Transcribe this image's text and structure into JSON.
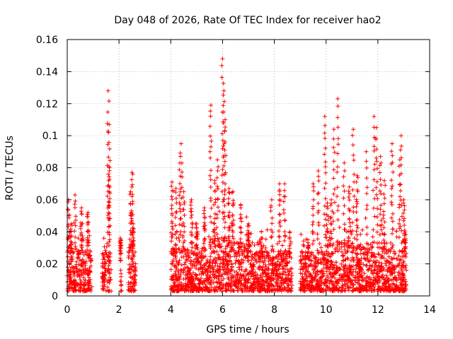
{
  "chart_data": {
    "type": "scatter",
    "title": "Day 048 of 2026, Rate Of TEC Index for receiver hao2",
    "xlabel": "GPS time / hours",
    "ylabel": "ROTI / TECUs",
    "xlim": [
      0,
      14
    ],
    "ylim": [
      0,
      0.16
    ],
    "xticks": [
      0,
      2,
      4,
      6,
      8,
      10,
      12,
      14
    ],
    "yticks": [
      0,
      0.02,
      0.04,
      0.06,
      0.08,
      0.1,
      0.12,
      0.14,
      0.16
    ],
    "xtick_labels": [
      "0",
      "2",
      "4",
      "6",
      "8",
      "10",
      "12",
      "14"
    ],
    "ytick_labels": [
      "0",
      "0.02",
      "0.04",
      "0.06",
      "0.08",
      "0.1",
      "0.12",
      "0.14",
      "0.16"
    ],
    "grid": true,
    "marker": "plus",
    "color": "#ff0000",
    "clusters": [
      {
        "x0": 0.0,
        "x1": 0.95,
        "base": 0.015,
        "peaks": [
          [
            0.05,
            0.06
          ],
          [
            0.15,
            0.045
          ],
          [
            0.3,
            0.063
          ],
          [
            0.55,
            0.055
          ],
          [
            0.8,
            0.052
          ]
        ]
      },
      {
        "x0": 1.35,
        "x1": 1.7,
        "base": 0.015,
        "peaks": [
          [
            1.58,
            0.128
          ],
          [
            1.62,
            0.107
          ],
          [
            1.63,
            0.08
          ],
          [
            1.6,
            0.072
          ]
        ]
      },
      {
        "x0": 2.05,
        "x1": 2.1,
        "base": 0.02,
        "peaks": [
          [
            2.05,
            0.036
          ]
        ]
      },
      {
        "x0": 2.35,
        "x1": 2.65,
        "base": 0.018,
        "peaks": [
          [
            2.5,
            0.077
          ],
          [
            2.45,
            0.065
          ],
          [
            2.55,
            0.045
          ]
        ]
      },
      {
        "x0": 4.0,
        "x1": 4.6,
        "base": 0.016,
        "peaks": [
          [
            4.05,
            0.071
          ],
          [
            4.2,
            0.067
          ],
          [
            4.4,
            0.095
          ],
          [
            4.35,
            0.083
          ],
          [
            4.5,
            0.065
          ]
        ]
      },
      {
        "x0": 4.6,
        "x1": 5.5,
        "base": 0.016,
        "peaks": [
          [
            4.8,
            0.06
          ],
          [
            5.0,
            0.045
          ],
          [
            5.3,
            0.055
          ]
        ]
      },
      {
        "x0": 5.5,
        "x1": 6.2,
        "base": 0.02,
        "peaks": [
          [
            5.55,
            0.119
          ],
          [
            5.8,
            0.085
          ],
          [
            6.0,
            0.148
          ],
          [
            6.05,
            0.128
          ],
          [
            6.1,
            0.11
          ],
          [
            5.7,
            0.072
          ]
        ]
      },
      {
        "x0": 6.2,
        "x1": 7.2,
        "base": 0.018,
        "peaks": [
          [
            6.25,
            0.067
          ],
          [
            6.4,
            0.065
          ],
          [
            6.7,
            0.057
          ],
          [
            7.0,
            0.045
          ]
        ]
      },
      {
        "x0": 7.2,
        "x1": 8.7,
        "base": 0.015,
        "peaks": [
          [
            7.5,
            0.04
          ],
          [
            7.9,
            0.06
          ],
          [
            8.2,
            0.07
          ],
          [
            8.4,
            0.07
          ],
          [
            8.6,
            0.04
          ]
        ]
      },
      {
        "x0": 9.0,
        "x1": 9.8,
        "base": 0.015,
        "peaks": [
          [
            9.3,
            0.035
          ],
          [
            9.5,
            0.07
          ],
          [
            9.7,
            0.078
          ]
        ]
      },
      {
        "x0": 9.8,
        "x1": 10.5,
        "base": 0.018,
        "peaks": [
          [
            9.95,
            0.112
          ],
          [
            10.05,
            0.058
          ],
          [
            10.3,
            0.104
          ],
          [
            10.45,
            0.123
          ],
          [
            10.2,
            0.06
          ]
        ]
      },
      {
        "x0": 10.5,
        "x1": 11.3,
        "base": 0.018,
        "peaks": [
          [
            10.7,
            0.083
          ],
          [
            10.9,
            0.068
          ],
          [
            11.05,
            0.104
          ],
          [
            11.2,
            0.075
          ]
        ]
      },
      {
        "x0": 11.3,
        "x1": 12.3,
        "base": 0.018,
        "peaks": [
          [
            11.55,
            0.09
          ],
          [
            11.85,
            0.112
          ],
          [
            11.95,
            0.105
          ],
          [
            12.1,
            0.087
          ],
          [
            12.25,
            0.072
          ]
        ]
      },
      {
        "x0": 12.3,
        "x1": 13.1,
        "base": 0.015,
        "peaks": [
          [
            12.55,
            0.095
          ],
          [
            12.85,
            0.085
          ],
          [
            12.9,
            0.1
          ],
          [
            13.0,
            0.06
          ],
          [
            13.05,
            0.04
          ]
        ]
      }
    ]
  }
}
